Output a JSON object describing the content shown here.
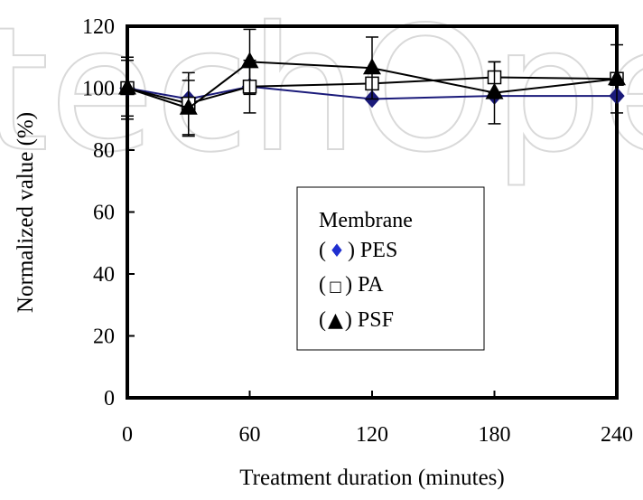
{
  "chart_data": {
    "type": "line",
    "title": "",
    "xlabel": "Treatment duration (minutes)",
    "ylabel": "Normalized value (%)",
    "xlim": [
      0,
      240
    ],
    "ylim": [
      0,
      120
    ],
    "x_ticks": [
      0,
      60,
      120,
      180,
      240
    ],
    "y_ticks": [
      0,
      20,
      40,
      60,
      80,
      100,
      120
    ],
    "grid": false,
    "legend": {
      "title": "Membrane",
      "placement": "center-right",
      "entries": [
        {
          "open": "(",
          "symbol": "♦",
          "close": ") PES",
          "series": "PES"
        },
        {
          "open": "(",
          "symbol": "□",
          "close": ") PA",
          "series": "PA"
        },
        {
          "open": "(",
          "symbol": "▲",
          "close": ") PSF",
          "series": "PSF"
        }
      ]
    },
    "series": [
      {
        "name": "PES",
        "marker": "diamond",
        "color": "#1a1a7a",
        "marker_color": "#1a1a7a",
        "points": [
          {
            "x": 0,
            "y": 100,
            "err": 0
          },
          {
            "x": 30,
            "y": 96.5,
            "err": 0
          },
          {
            "x": 60,
            "y": 100.5,
            "err": 0
          },
          {
            "x": 120,
            "y": 96.5,
            "err": 0
          },
          {
            "x": 180,
            "y": 97.5,
            "err": 0
          },
          {
            "x": 240,
            "y": 97.5,
            "err": 0
          }
        ]
      },
      {
        "name": "PA",
        "marker": "square-open",
        "color": "#000000",
        "marker_color": "#000000",
        "points": [
          {
            "x": 0,
            "y": 100,
            "err": 9
          },
          {
            "x": 30,
            "y": 95,
            "err": 10
          },
          {
            "x": 60,
            "y": 100.5,
            "err": 8.5
          },
          {
            "x": 120,
            "y": 101.5,
            "err": 0
          },
          {
            "x": 180,
            "y": 103.5,
            "err": 5
          },
          {
            "x": 240,
            "y": 103,
            "err": 0
          }
        ]
      },
      {
        "name": "PSF",
        "marker": "triangle",
        "color": "#000000",
        "marker_color": "#000000",
        "points": [
          {
            "x": 0,
            "y": 100,
            "err": 10
          },
          {
            "x": 30,
            "y": 93.5,
            "err": 9
          },
          {
            "x": 60,
            "y": 108.5,
            "err": 10.5
          },
          {
            "x": 120,
            "y": 106.5,
            "err": 10
          },
          {
            "x": 180,
            "y": 98.5,
            "err": 10
          },
          {
            "x": 240,
            "y": 103,
            "err": 11
          }
        ]
      }
    ]
  },
  "watermark": {
    "text": "techOpen"
  },
  "colors": {
    "pes_marker": "#1a1a7a",
    "pes_legend_symbol": "#1f2fd0",
    "axis": "#000000",
    "background": "#ffffff"
  }
}
